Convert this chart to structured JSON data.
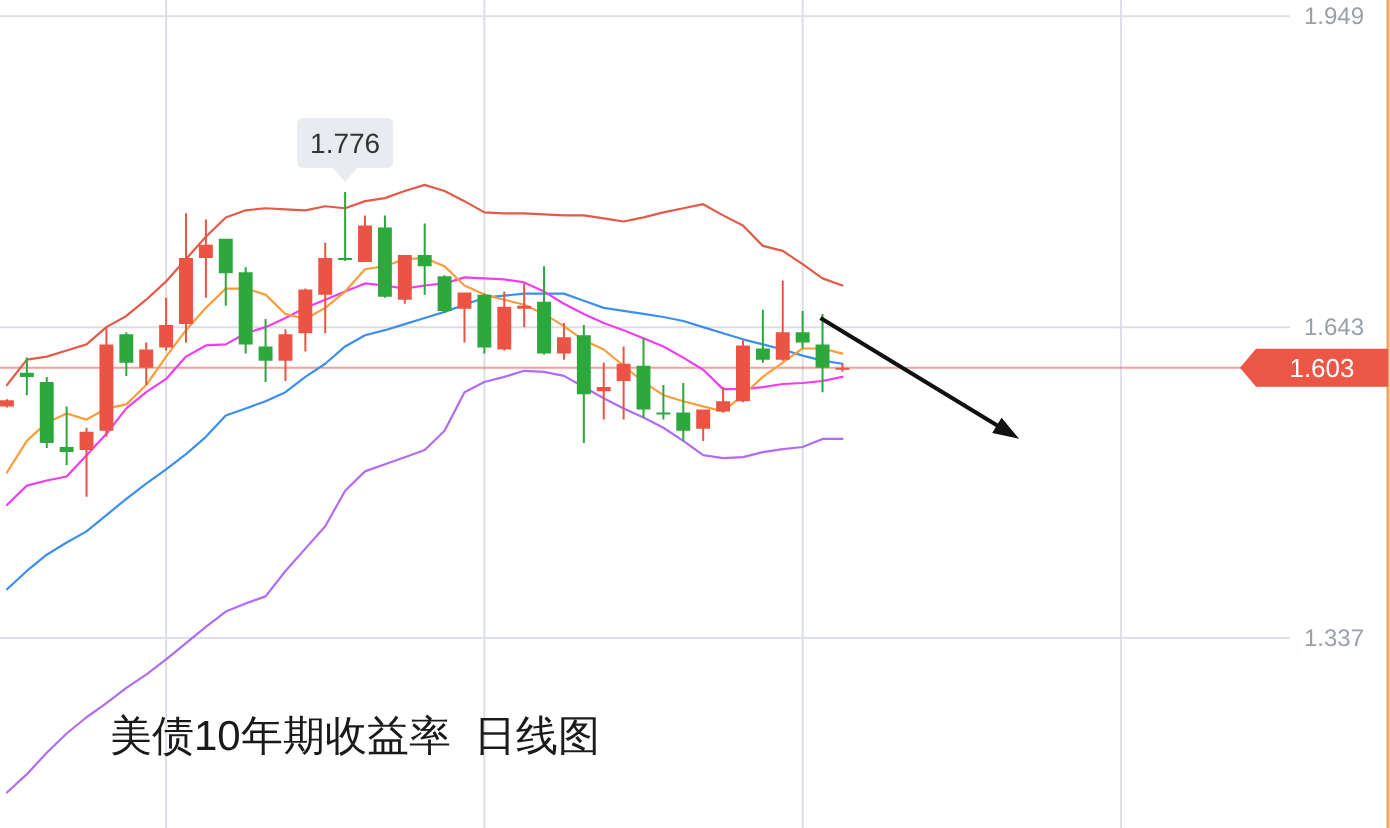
{
  "chart_data": {
    "type": "candlestick",
    "title": "美债10年期收益率  日线图",
    "categories": [
      null,
      null,
      null,
      null,
      null,
      null,
      null,
      null,
      null,
      null,
      null,
      null,
      null,
      null,
      null,
      null,
      null,
      null,
      null,
      null,
      null,
      null,
      null,
      null,
      null,
      null,
      null,
      null,
      null,
      null,
      null,
      null,
      null,
      null,
      null,
      null,
      null,
      null,
      null,
      null,
      null,
      null,
      null
    ],
    "ohlc": [
      [
        1.565,
        1.572,
        1.564,
        1.571
      ],
      [
        1.598,
        1.613,
        1.576,
        1.594
      ],
      [
        1.589,
        1.594,
        1.524,
        1.529
      ],
      [
        1.525,
        1.565,
        1.507,
        1.52
      ],
      [
        1.522,
        1.544,
        1.476,
        1.54
      ],
      [
        1.541,
        1.642,
        1.535,
        1.626
      ],
      [
        1.636,
        1.638,
        1.595,
        1.608
      ],
      [
        1.603,
        1.628,
        1.586,
        1.621
      ],
      [
        1.623,
        1.672,
        1.62,
        1.645
      ],
      [
        1.646,
        1.755,
        1.628,
        1.711
      ],
      [
        1.711,
        1.749,
        1.672,
        1.724
      ],
      [
        1.73,
        1.73,
        1.664,
        1.696
      ],
      [
        1.697,
        1.702,
        1.617,
        1.626
      ],
      [
        1.624,
        1.651,
        1.589,
        1.61
      ],
      [
        1.61,
        1.641,
        1.59,
        1.636
      ],
      [
        1.637,
        1.681,
        1.619,
        1.68
      ],
      [
        1.675,
        1.726,
        1.637,
        1.711
      ],
      [
        1.711,
        1.776,
        1.708,
        1.709
      ],
      [
        1.707,
        1.753,
        1.707,
        1.743
      ],
      [
        1.741,
        1.753,
        1.672,
        1.673
      ],
      [
        1.67,
        1.714,
        1.666,
        1.714
      ],
      [
        1.714,
        1.745,
        1.675,
        1.703
      ],
      [
        1.693,
        1.694,
        1.657,
        1.659
      ],
      [
        1.661,
        1.677,
        1.628,
        1.677
      ],
      [
        1.675,
        1.676,
        1.617,
        1.623
      ],
      [
        1.621,
        1.678,
        1.62,
        1.663
      ],
      [
        1.661,
        1.686,
        1.643,
        1.664
      ],
      [
        1.668,
        1.703,
        1.616,
        1.617
      ],
      [
        1.617,
        1.647,
        1.611,
        1.633
      ],
      [
        1.635,
        1.645,
        1.529,
        1.577
      ],
      [
        1.58,
        1.608,
        1.552,
        1.584
      ],
      [
        1.59,
        1.624,
        1.552,
        1.607
      ],
      [
        1.605,
        1.632,
        1.554,
        1.562
      ],
      [
        1.559,
        1.586,
        1.552,
        1.557
      ],
      [
        1.559,
        1.588,
        1.531,
        1.541
      ],
      [
        1.543,
        1.562,
        1.531,
        1.562
      ],
      [
        1.56,
        1.584,
        1.559,
        1.57
      ],
      [
        1.57,
        1.63,
        1.569,
        1.625
      ],
      [
        1.622,
        1.66,
        1.608,
        1.611
      ],
      [
        1.611,
        1.689,
        1.61,
        1.638
      ],
      [
        1.638,
        1.659,
        1.622,
        1.628
      ],
      [
        1.626,
        1.656,
        1.579,
        1.603
      ],
      [
        1.601,
        1.607,
        1.599,
        1.603
      ]
    ],
    "colors": [
      "#eb5444",
      "#2ca83d",
      "#2ca83d",
      "#2ca83d",
      "#eb5444",
      "#eb5444",
      "#2ca83d",
      "#eb5444",
      "#eb5444",
      "#eb5444",
      "#eb5444",
      "#2ca83d",
      "#2ca83d",
      "#2ca83d",
      "#eb5444",
      "#eb5444",
      "#eb5444",
      "#2ca83d",
      "#eb5444",
      "#2ca83d",
      "#eb5444",
      "#2ca83d",
      "#2ca83d",
      "#eb5444",
      "#2ca83d",
      "#eb5444",
      "#eb5444",
      "#2ca83d",
      "#eb5444",
      "#2ca83d",
      "#eb5444",
      "#eb5444",
      "#2ca83d",
      "#2ca83d",
      "#2ca83d",
      "#eb5444",
      "#eb5444",
      "#eb5444",
      "#2ca83d",
      "#eb5444",
      "#2ca83d",
      "#2ca83d",
      "#eb5444"
    ],
    "series": [
      {
        "type": "line",
        "color": "#e35a48",
        "values": [
          1.586,
          1.611,
          1.614,
          1.62,
          1.626,
          1.643,
          1.654,
          1.67,
          1.688,
          1.71,
          1.732,
          1.751,
          1.758,
          1.76,
          1.759,
          1.758,
          1.762,
          1.76,
          1.767,
          1.77,
          1.777,
          1.783,
          1.777,
          1.767,
          1.756,
          1.755,
          1.755,
          1.754,
          1.753,
          1.753,
          1.75,
          1.747,
          1.751,
          1.756,
          1.76,
          1.764,
          1.753,
          1.743,
          1.723,
          1.718,
          1.705,
          1.691,
          1.684
        ]
      },
      {
        "type": "line",
        "color": "#b06cf5",
        "values": [
          1.185,
          1.203,
          1.224,
          1.243,
          1.259,
          1.273,
          1.288,
          1.301,
          1.316,
          1.332,
          1.348,
          1.363,
          1.371,
          1.378,
          1.403,
          1.425,
          1.447,
          1.482,
          1.501,
          1.508,
          1.515,
          1.522,
          1.541,
          1.579,
          1.589,
          1.594,
          1.6,
          1.599,
          1.595,
          1.584,
          1.573,
          1.563,
          1.554,
          1.544,
          1.531,
          1.517,
          1.514,
          1.515,
          1.52,
          1.523,
          1.525,
          1.533,
          1.533
        ]
      },
      {
        "type": "line",
        "color": "#3c8ff0",
        "values": [
          1.385,
          1.403,
          1.419,
          1.431,
          1.442,
          1.458,
          1.474,
          1.489,
          1.503,
          1.518,
          1.535,
          1.556,
          1.563,
          1.57,
          1.579,
          1.594,
          1.607,
          1.624,
          1.635,
          1.64,
          1.646,
          1.652,
          1.658,
          1.665,
          1.672,
          1.674,
          1.676,
          1.676,
          1.676,
          1.669,
          1.662,
          1.659,
          1.656,
          1.653,
          1.649,
          1.643,
          1.637,
          1.631,
          1.626,
          1.621,
          1.615,
          1.61,
          1.607
        ]
      },
      {
        "type": "line",
        "color": "#f23cf0",
        "values": [
          1.468,
          1.487,
          1.492,
          1.496,
          1.517,
          1.538,
          1.563,
          1.579,
          1.592,
          1.614,
          1.625,
          1.626,
          1.637,
          1.643,
          1.652,
          1.662,
          1.67,
          1.678,
          1.686,
          1.684,
          1.681,
          1.684,
          1.686,
          1.692,
          1.691,
          1.69,
          1.687,
          1.678,
          1.666,
          1.656,
          1.647,
          1.64,
          1.632,
          1.624,
          1.613,
          1.601,
          1.582,
          1.582,
          1.584,
          1.587,
          1.588,
          1.59,
          1.594
        ]
      },
      {
        "type": "line",
        "color": "#fa9d3a",
        "values": [
          1.5,
          1.531,
          1.549,
          1.558,
          1.552,
          1.563,
          1.567,
          1.586,
          1.614,
          1.64,
          1.662,
          1.681,
          1.681,
          1.675,
          1.656,
          1.651,
          1.662,
          1.678,
          1.7,
          1.703,
          1.71,
          1.711,
          1.703,
          1.684,
          1.675,
          1.67,
          1.665,
          1.656,
          1.644,
          1.63,
          1.621,
          1.605,
          1.589,
          1.576,
          1.57,
          1.565,
          1.56,
          1.576,
          1.594,
          1.608,
          1.622,
          1.622,
          1.617
        ]
      }
    ],
    "ylim": [
      1.15,
      1.965
    ],
    "yticks": [
      1.337,
      1.643,
      1.949
    ],
    "grid": true,
    "ref_lines": [
      {
        "axis": "y",
        "value": 1.603,
        "label": "1.603",
        "color": "#ec5646"
      }
    ],
    "annotations": [
      {
        "text": "1.776",
        "y": 1.776
      }
    ]
  }
}
